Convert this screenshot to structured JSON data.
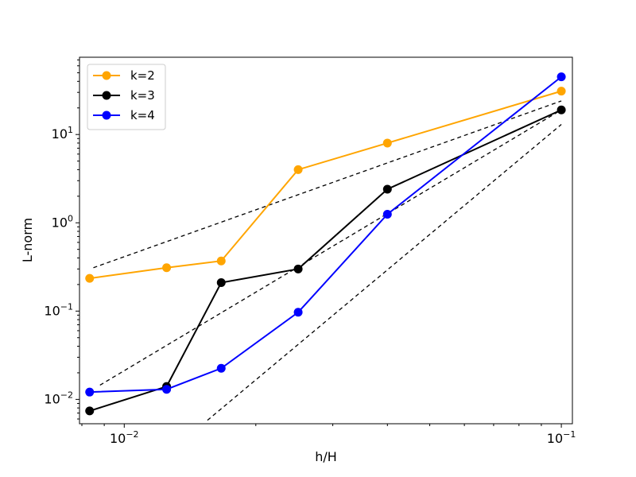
{
  "chart_data": {
    "type": "line",
    "xscale": "log",
    "yscale": "log",
    "xlabel": "h/H",
    "ylabel": "L-norm",
    "xlim": [
      0.0079,
      0.106
    ],
    "ylim": [
      0.0053,
      75
    ],
    "legend_position": "top-left",
    "x_ticks": [
      {
        "value": 0.01,
        "base": "10",
        "exp": "−2"
      },
      {
        "value": 0.1,
        "base": "10",
        "exp": "−1"
      }
    ],
    "y_ticks": [
      {
        "value": 0.01,
        "base": "10",
        "exp": "−2"
      },
      {
        "value": 0.1,
        "base": "10",
        "exp": "−1"
      },
      {
        "value": 1,
        "base": "10",
        "exp": "0"
      },
      {
        "value": 10,
        "base": "10",
        "exp": "1"
      }
    ],
    "series": [
      {
        "name": "k=2",
        "color": "#FFA500",
        "x": [
          0.008333,
          0.0125,
          0.016667,
          0.025,
          0.04,
          0.1
        ],
        "y": [
          0.235,
          0.31,
          0.37,
          4.0,
          8.0,
          31.0
        ]
      },
      {
        "name": "k=3",
        "color": "#000000",
        "x": [
          0.008333,
          0.0125,
          0.016667,
          0.025,
          0.04,
          0.1
        ],
        "y": [
          0.0074,
          0.014,
          0.21,
          0.3,
          2.4,
          19.0
        ]
      },
      {
        "name": "k=4",
        "color": "#0000FF",
        "x": [
          0.008333,
          0.0125,
          0.016667,
          0.025,
          0.04,
          0.1
        ],
        "y": [
          0.0121,
          0.013,
          0.0225,
          0.097,
          1.25,
          45.0
        ]
      }
    ],
    "reference_lines": [
      {
        "name": "slope-2",
        "x": [
          0.0085,
          0.1
        ],
        "y": [
          0.31,
          24.0
        ]
      },
      {
        "name": "slope-3",
        "x": [
          0.0088,
          0.1
        ],
        "y": [
          0.0145,
          19.0
        ]
      },
      {
        "name": "slope-4",
        "x": [
          0.0155,
          0.1
        ],
        "y": [
          0.0058,
          13.0
        ]
      }
    ]
  }
}
